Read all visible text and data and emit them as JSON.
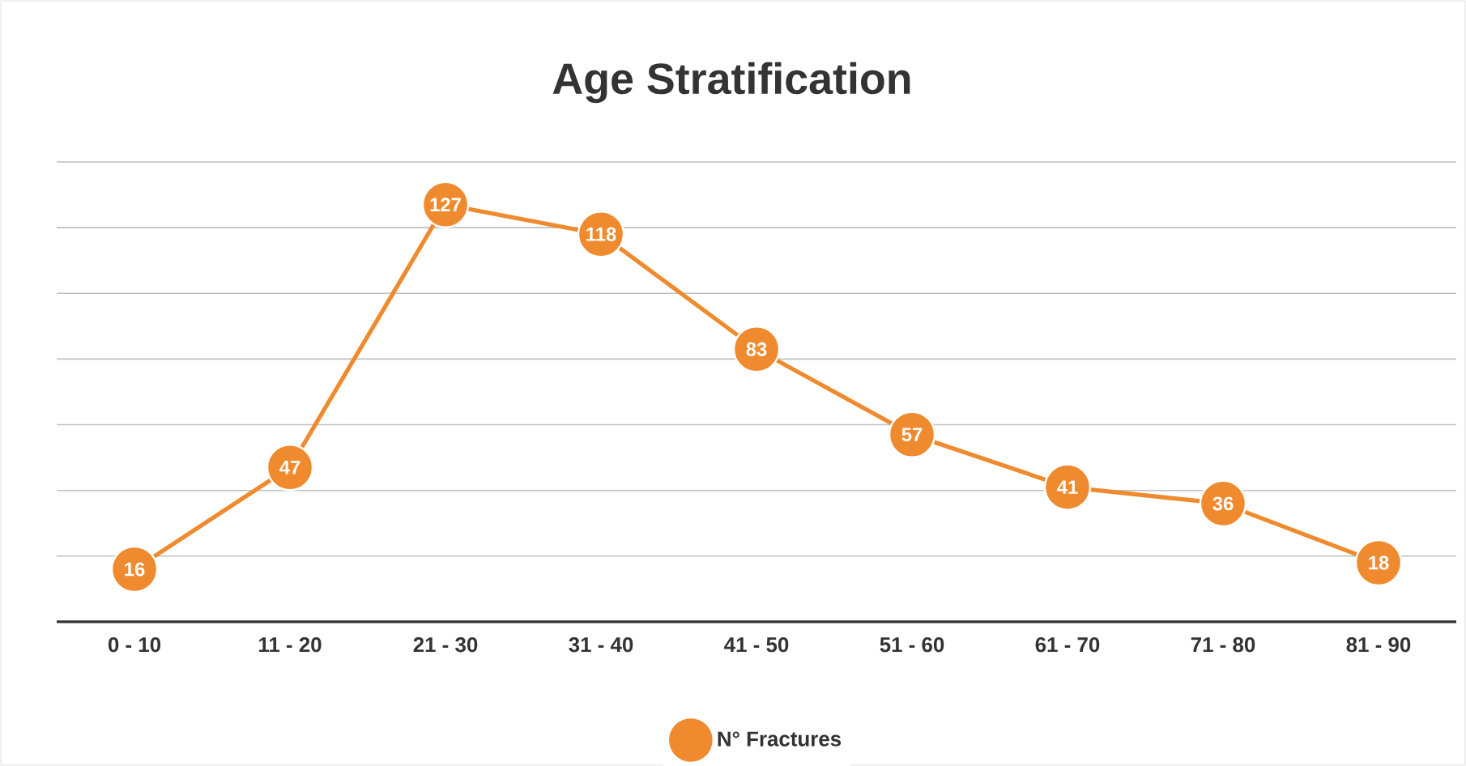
{
  "chart_data": {
    "type": "line",
    "title": "Age Stratification",
    "categories": [
      "0 - 10",
      "11 - 20",
      "21 - 30",
      "31 - 40",
      "41 - 50",
      "51 - 60",
      "61 - 70",
      "71 - 80",
      "81 - 90"
    ],
    "series": [
      {
        "name": "N° Fractures",
        "color": "#ef8a2e",
        "values": [
          16,
          47,
          127,
          118,
          83,
          57,
          41,
          36,
          18
        ]
      }
    ],
    "ylim": [
      0,
      140
    ],
    "yticks": [
      {
        "value": 20,
        "label": null
      },
      {
        "value": 40,
        "label": null
      },
      {
        "value": 60,
        "label": null
      },
      {
        "value": 80,
        "label": null
      },
      {
        "value": 100,
        "label": null
      },
      {
        "value": 120,
        "label": null
      },
      {
        "value": 140,
        "label": null
      }
    ],
    "tick_labels": "x",
    "grid": "y",
    "legend": "bottom",
    "marker": "circle",
    "line_style": "solid",
    "data_labels": true
  }
}
